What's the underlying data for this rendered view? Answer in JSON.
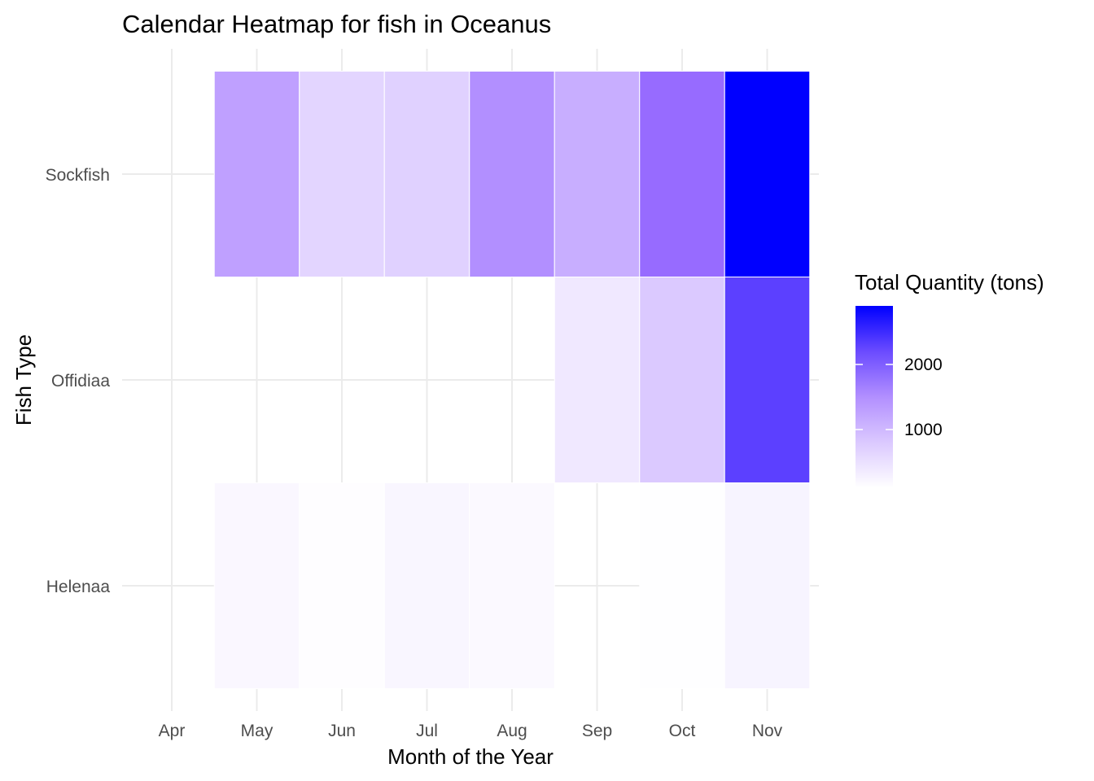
{
  "chart_data": {
    "type": "heatmap",
    "title": "Calendar Heatmap for fish in Oceanus",
    "xlabel": "Month of the Year",
    "ylabel": "Fish Type",
    "x_categories": [
      "Apr",
      "May",
      "Jun",
      "Jul",
      "Aug",
      "Sep",
      "Oct",
      "Nov"
    ],
    "y_categories": [
      "Helenaa",
      "Offidiaa",
      "Sockfish"
    ],
    "cells": [
      {
        "fish": "Sockfish",
        "month": "May",
        "value": 1300
      },
      {
        "fish": "Sockfish",
        "month": "Jun",
        "value": 650
      },
      {
        "fish": "Sockfish",
        "month": "Jul",
        "value": 700
      },
      {
        "fish": "Sockfish",
        "month": "Aug",
        "value": 1500
      },
      {
        "fish": "Sockfish",
        "month": "Sep",
        "value": 1150
      },
      {
        "fish": "Sockfish",
        "month": "Oct",
        "value": 1900
      },
      {
        "fish": "Sockfish",
        "month": "Nov",
        "value": 2900
      },
      {
        "fish": "Offidiaa",
        "month": "Sep",
        "value": 400
      },
      {
        "fish": "Offidiaa",
        "month": "Oct",
        "value": 800
      },
      {
        "fish": "Offidiaa",
        "month": "Nov",
        "value": 2300
      },
      {
        "fish": "Helenaa",
        "month": "May",
        "value": 200
      },
      {
        "fish": "Helenaa",
        "month": "Jun",
        "value": 120
      },
      {
        "fish": "Helenaa",
        "month": "Jul",
        "value": 220
      },
      {
        "fish": "Helenaa",
        "month": "Aug",
        "value": 180
      },
      {
        "fish": "Helenaa",
        "month": "Oct",
        "value": 110
      },
      {
        "fish": "Helenaa",
        "month": "Nov",
        "value": 250
      }
    ],
    "legend": {
      "title": "Total Quantity (tons)",
      "breaks": [
        1000,
        2000
      ],
      "min": 100,
      "max": 2900,
      "low_color": "#ffffff",
      "high_color": "#0000ff",
      "placement": "right"
    },
    "grid": true
  }
}
